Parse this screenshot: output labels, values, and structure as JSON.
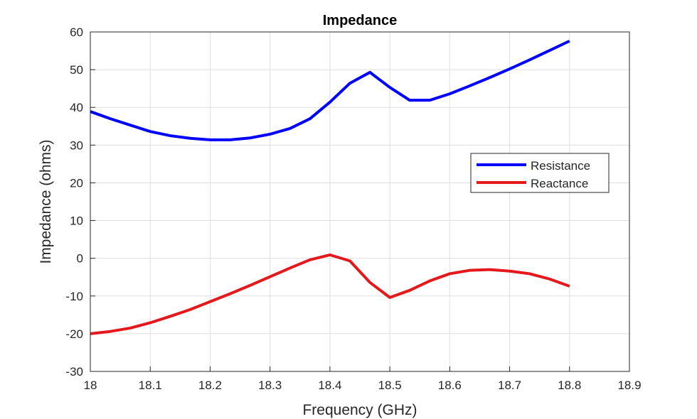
{
  "chart_data": {
    "type": "line",
    "title": "Impedance",
    "xlabel": "Frequency (GHz)",
    "ylabel": "Impedance (ohms)",
    "xlim": [
      18,
      18.9
    ],
    "ylim": [
      -30,
      60
    ],
    "xticks": [
      "18",
      "18.1",
      "18.2",
      "18.3",
      "18.4",
      "18.5",
      "18.6",
      "18.7",
      "18.8",
      "18.9"
    ],
    "yticks": [
      "-30",
      "-20",
      "-10",
      "0",
      "10",
      "20",
      "30",
      "40",
      "50",
      "60"
    ],
    "grid": true,
    "legend_position": "right",
    "x": [
      18,
      18.0333,
      18.0667,
      18.1,
      18.1333,
      18.1667,
      18.2,
      18.2333,
      18.2667,
      18.3,
      18.3333,
      18.3667,
      18.4,
      18.4333,
      18.4667,
      18.5,
      18.5333,
      18.5667,
      18.6,
      18.6333,
      18.6667,
      18.7,
      18.7333,
      18.7667,
      18.8
    ],
    "series": [
      {
        "name": "Resistance",
        "color": "#0000ff",
        "values": [
          38.9,
          37.0,
          35.3,
          33.6,
          32.5,
          31.8,
          31.4,
          31.4,
          31.9,
          32.9,
          34.4,
          37.0,
          41.4,
          46.4,
          49.3,
          45.3,
          41.9,
          41.9,
          43.6,
          45.7,
          47.9,
          50.2,
          52.6,
          55.1,
          57.6
        ]
      },
      {
        "name": "Reactance",
        "color": "#e3191c",
        "values": [
          -20.0,
          -19.4,
          -18.5,
          -17.1,
          -15.4,
          -13.6,
          -11.5,
          -9.4,
          -7.2,
          -4.9,
          -2.6,
          -0.4,
          0.9,
          -0.7,
          -6.4,
          -10.4,
          -8.5,
          -6.0,
          -4.1,
          -3.2,
          -3.0,
          -3.4,
          -4.1,
          -5.5,
          -7.4
        ]
      }
    ]
  }
}
